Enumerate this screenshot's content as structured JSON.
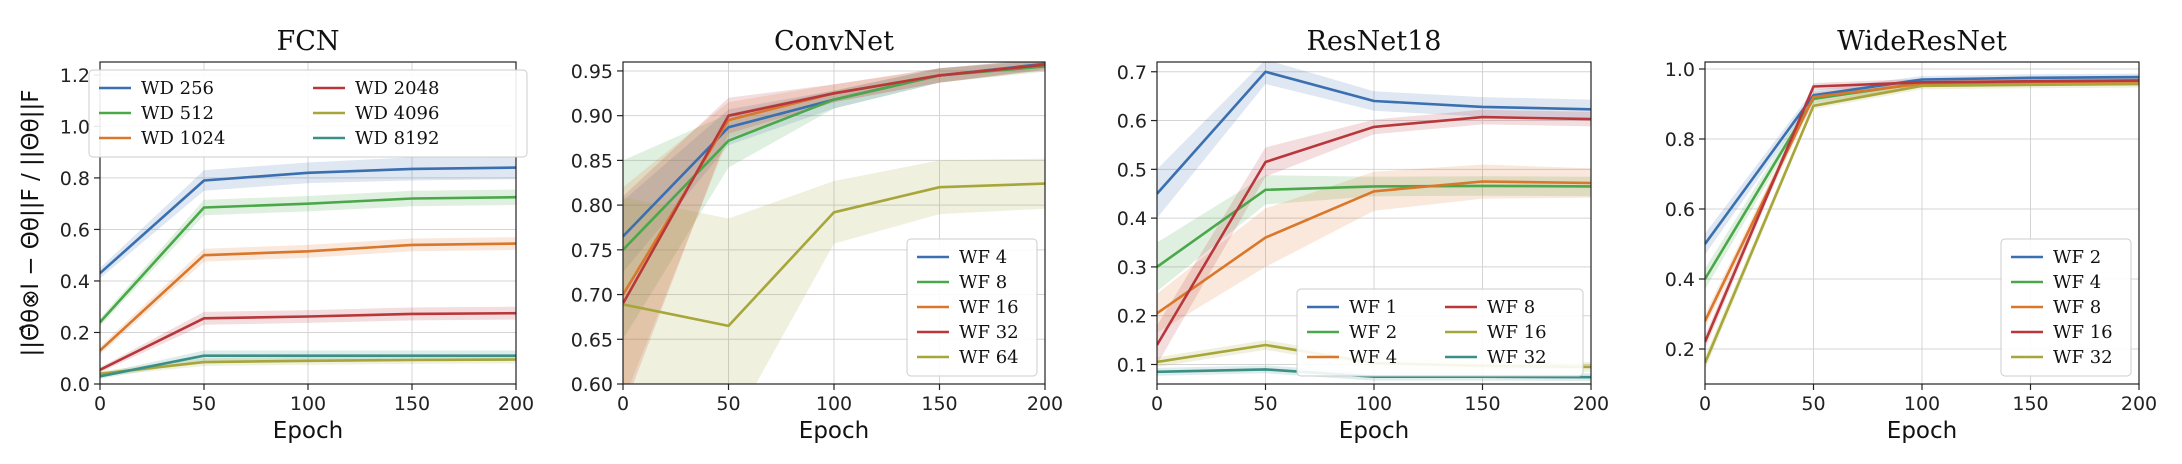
{
  "chart_data": [
    {
      "type": "line",
      "title": "FCN",
      "xlabel": "Epoch",
      "ylabel": "||Θ̂θ⊗l − Θθ||F / ||Θθ||F",
      "xlim": [
        0,
        200
      ],
      "ylim": [
        0,
        1.25
      ],
      "xticks": [
        0,
        50,
        100,
        150,
        200
      ],
      "xtick_labels": [
        "0",
        "50",
        "100",
        "150",
        "200"
      ],
      "yticks": [
        0,
        0.2,
        0.4,
        0.6,
        0.8,
        1.0,
        1.2
      ],
      "ytick_labels": [
        "0.0",
        "0.2",
        "0.4",
        "0.6",
        "0.8",
        "1.0",
        "1.2"
      ],
      "grid": true,
      "legend": {
        "position": "top-center",
        "columns": 2
      },
      "x": [
        0,
        50,
        100,
        150,
        200
      ],
      "series": [
        {
          "name": "WD 256",
          "color": "#3a6fb0",
          "values": [
            0.43,
            0.79,
            0.82,
            0.835,
            0.84
          ],
          "spread": [
            0.02,
            0.04,
            0.04,
            0.045,
            0.045
          ]
        },
        {
          "name": "WD 512",
          "color": "#4aa84a",
          "values": [
            0.24,
            0.685,
            0.7,
            0.72,
            0.725
          ],
          "spread": [
            0.015,
            0.03,
            0.03,
            0.03,
            0.03
          ]
        },
        {
          "name": "WD 1024",
          "color": "#d9772b",
          "values": [
            0.13,
            0.5,
            0.515,
            0.54,
            0.545
          ],
          "spread": [
            0.015,
            0.025,
            0.025,
            0.025,
            0.025
          ]
        },
        {
          "name": "WD 2048",
          "color": "#b8373b",
          "values": [
            0.055,
            0.255,
            0.262,
            0.272,
            0.275
          ],
          "spread": [
            0.01,
            0.025,
            0.025,
            0.025,
            0.025
          ]
        },
        {
          "name": "WD 4096",
          "color": "#a6a63a",
          "values": [
            0.04,
            0.085,
            0.09,
            0.093,
            0.095
          ],
          "spread": [
            0.01,
            0.015,
            0.015,
            0.015,
            0.015
          ]
        },
        {
          "name": "WD 8192",
          "color": "#3a8f86",
          "values": [
            0.03,
            0.11,
            0.11,
            0.11,
            0.11
          ],
          "spread": [
            0.01,
            0.02,
            0.02,
            0.02,
            0.02
          ]
        }
      ]
    },
    {
      "type": "line",
      "title": "ConvNet",
      "xlabel": "Epoch",
      "ylabel": "",
      "xlim": [
        0,
        200
      ],
      "ylim": [
        0.6,
        0.96
      ],
      "xticks": [
        0,
        50,
        100,
        150,
        200
      ],
      "xtick_labels": [
        "0",
        "50",
        "100",
        "150",
        "200"
      ],
      "yticks": [
        0.6,
        0.65,
        0.7,
        0.75,
        0.8,
        0.85,
        0.9,
        0.95
      ],
      "ytick_labels": [
        "0.60",
        "0.65",
        "0.70",
        "0.75",
        "0.80",
        "0.85",
        "0.90",
        "0.95"
      ],
      "grid": true,
      "legend": {
        "position": "bottom-right",
        "columns": 1
      },
      "x": [
        0,
        50,
        100,
        150,
        200
      ],
      "series": [
        {
          "name": "WF 4",
          "color": "#3a6fb0",
          "values": [
            0.765,
            0.887,
            0.918,
            0.945,
            0.958
          ],
          "spread": [
            0.04,
            0.02,
            0.01,
            0.008,
            0.006
          ]
        },
        {
          "name": "WF 8",
          "color": "#4aa84a",
          "values": [
            0.75,
            0.872,
            0.918,
            0.945,
            0.955
          ],
          "spread": [
            0.1,
            0.03,
            0.01,
            0.008,
            0.006
          ]
        },
        {
          "name": "WF 16",
          "color": "#d9772b",
          "values": [
            0.7,
            0.895,
            0.925,
            0.945,
            0.957
          ],
          "spread": [
            0.12,
            0.02,
            0.01,
            0.008,
            0.006
          ]
        },
        {
          "name": "WF 32",
          "color": "#b8373b",
          "values": [
            0.69,
            0.9,
            0.925,
            0.945,
            0.957
          ],
          "spread": [
            0.12,
            0.02,
            0.01,
            0.008,
            0.006
          ]
        },
        {
          "name": "WF 64",
          "color": "#a6a63a",
          "values": [
            0.689,
            0.665,
            0.792,
            0.82,
            0.824
          ],
          "spread": [
            0.12,
            0.12,
            0.035,
            0.03,
            0.028
          ]
        }
      ]
    },
    {
      "type": "line",
      "title": "ResNet18",
      "xlabel": "Epoch",
      "ylabel": "",
      "xlim": [
        0,
        200
      ],
      "ylim": [
        0.06,
        0.72
      ],
      "xticks": [
        0,
        50,
        100,
        150,
        200
      ],
      "xtick_labels": [
        "0",
        "50",
        "100",
        "150",
        "200"
      ],
      "yticks": [
        0.1,
        0.2,
        0.3,
        0.4,
        0.5,
        0.6,
        0.7
      ],
      "ytick_labels": [
        "0.1",
        "0.2",
        "0.3",
        "0.4",
        "0.5",
        "0.6",
        "0.7"
      ],
      "grid": true,
      "legend": {
        "position": "bottom-right",
        "columns": 2
      },
      "x": [
        0,
        50,
        100,
        150,
        200
      ],
      "series": [
        {
          "name": "WF 1",
          "color": "#3a6fb0",
          "values": [
            0.45,
            0.7,
            0.64,
            0.628,
            0.623
          ],
          "spread": [
            0.05,
            0.025,
            0.02,
            0.02,
            0.02
          ]
        },
        {
          "name": "WF 2",
          "color": "#4aa84a",
          "values": [
            0.3,
            0.458,
            0.465,
            0.466,
            0.465
          ],
          "spread": [
            0.05,
            0.03,
            0.02,
            0.02,
            0.02
          ]
        },
        {
          "name": "WF 4",
          "color": "#d9772b",
          "values": [
            0.205,
            0.36,
            0.455,
            0.475,
            0.472
          ],
          "spread": [
            0.04,
            0.06,
            0.04,
            0.035,
            0.03
          ]
        },
        {
          "name": "WF 8",
          "color": "#b8373b",
          "values": [
            0.14,
            0.515,
            0.587,
            0.607,
            0.603
          ],
          "spread": [
            0.04,
            0.03,
            0.015,
            0.015,
            0.015
          ]
        },
        {
          "name": "WF 16",
          "color": "#a6a63a",
          "values": [
            0.105,
            0.14,
            0.103,
            0.097,
            0.095
          ],
          "spread": [
            0.01,
            0.01,
            0.01,
            0.01,
            0.01
          ]
        },
        {
          "name": "WF 32",
          "color": "#3a8f86",
          "values": [
            0.085,
            0.09,
            0.075,
            0.075,
            0.074
          ],
          "spread": [
            0.008,
            0.008,
            0.008,
            0.008,
            0.008
          ]
        }
      ]
    },
    {
      "type": "line",
      "title": "WideResNet",
      "xlabel": "Epoch",
      "ylabel": "",
      "xlim": [
        0,
        200
      ],
      "ylim": [
        0.1,
        1.02
      ],
      "xticks": [
        0,
        50,
        100,
        150,
        200
      ],
      "xtick_labels": [
        "0",
        "50",
        "100",
        "150",
        "200"
      ],
      "yticks": [
        0.2,
        0.4,
        0.6,
        0.8,
        1.0
      ],
      "ytick_labels": [
        "0.2",
        "0.4",
        "0.6",
        "0.8",
        "1.0"
      ],
      "grid": true,
      "legend": {
        "position": "bottom-right",
        "columns": 1
      },
      "x": [
        0,
        50,
        100,
        150,
        200
      ],
      "series": [
        {
          "name": "WF 2",
          "color": "#3a6fb0",
          "values": [
            0.5,
            0.925,
            0.97,
            0.975,
            0.977
          ],
          "spread": [
            0.03,
            0.015,
            0.01,
            0.01,
            0.01
          ]
        },
        {
          "name": "WF 4",
          "color": "#4aa84a",
          "values": [
            0.4,
            0.915,
            0.96,
            0.965,
            0.967
          ],
          "spread": [
            0.03,
            0.015,
            0.01,
            0.01,
            0.01
          ]
        },
        {
          "name": "WF 8",
          "color": "#d9772b",
          "values": [
            0.28,
            0.92,
            0.958,
            0.963,
            0.965
          ],
          "spread": [
            0.02,
            0.015,
            0.01,
            0.01,
            0.01
          ]
        },
        {
          "name": "WF 16",
          "color": "#b8373b",
          "values": [
            0.22,
            0.95,
            0.962,
            0.965,
            0.967
          ],
          "spread": [
            0.02,
            0.01,
            0.01,
            0.01,
            0.01
          ]
        },
        {
          "name": "WF 32",
          "color": "#a6a63a",
          "values": [
            0.16,
            0.895,
            0.952,
            0.955,
            0.957
          ],
          "spread": [
            0.02,
            0.01,
            0.01,
            0.01,
            0.01
          ]
        }
      ]
    }
  ]
}
